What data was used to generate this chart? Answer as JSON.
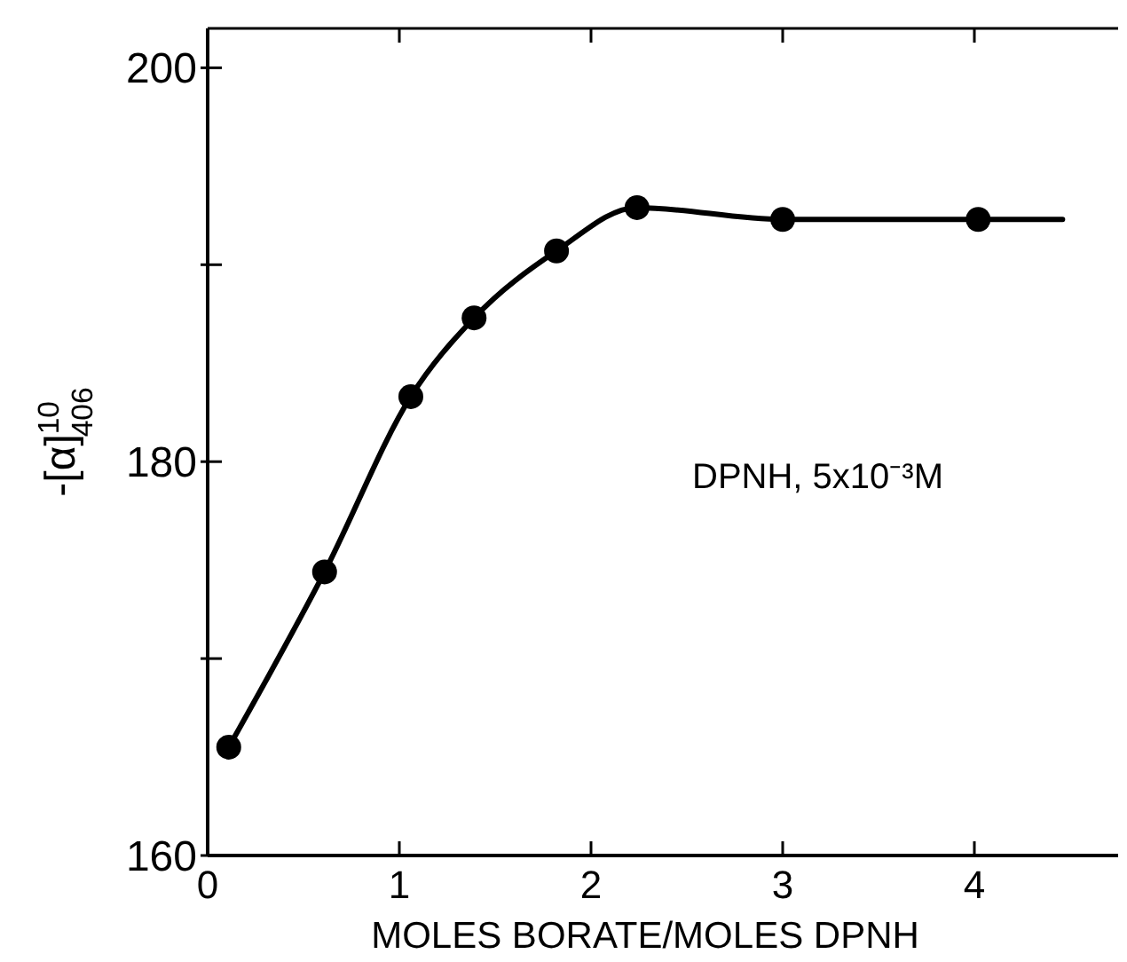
{
  "chart_data": {
    "type": "scatter",
    "xlabel": "MOLES BORATE/MOLES DPNH",
    "ylabel": "-[α]$^{10}$$_{406}$",
    "xlim": [
      0,
      4.75
    ],
    "ylim": [
      160,
      202
    ],
    "xticks": [
      0,
      1,
      2,
      3,
      4
    ],
    "yticks": [
      160,
      {
        "value": 170,
        "label": null
      },
      180,
      {
        "value": 190,
        "label": null
      },
      200
    ],
    "grid": false,
    "marker": "circle",
    "line_style": "solid",
    "annotations": [
      "DPNH, 5x10⁻³M"
    ],
    "series": [
      {
        "type": "line",
        "color": "#000000",
        "marker": "none",
        "x": [
          0.11,
          0.61,
          1.06,
          1.39,
          1.82,
          2.24,
          3.0,
          4.02,
          4.46
        ],
        "values": [
          165.5,
          174.4,
          183.3,
          187.3,
          190.7,
          192.9,
          192.3,
          192.3,
          192.3
        ]
      },
      {
        "color": "#000000",
        "x": [
          0.11,
          0.61,
          1.06,
          1.39,
          1.82,
          2.24,
          3.0,
          4.02
        ],
        "values": [
          165.5,
          174.4,
          183.3,
          187.3,
          190.7,
          192.9,
          192.3,
          192.3
        ]
      }
    ]
  }
}
